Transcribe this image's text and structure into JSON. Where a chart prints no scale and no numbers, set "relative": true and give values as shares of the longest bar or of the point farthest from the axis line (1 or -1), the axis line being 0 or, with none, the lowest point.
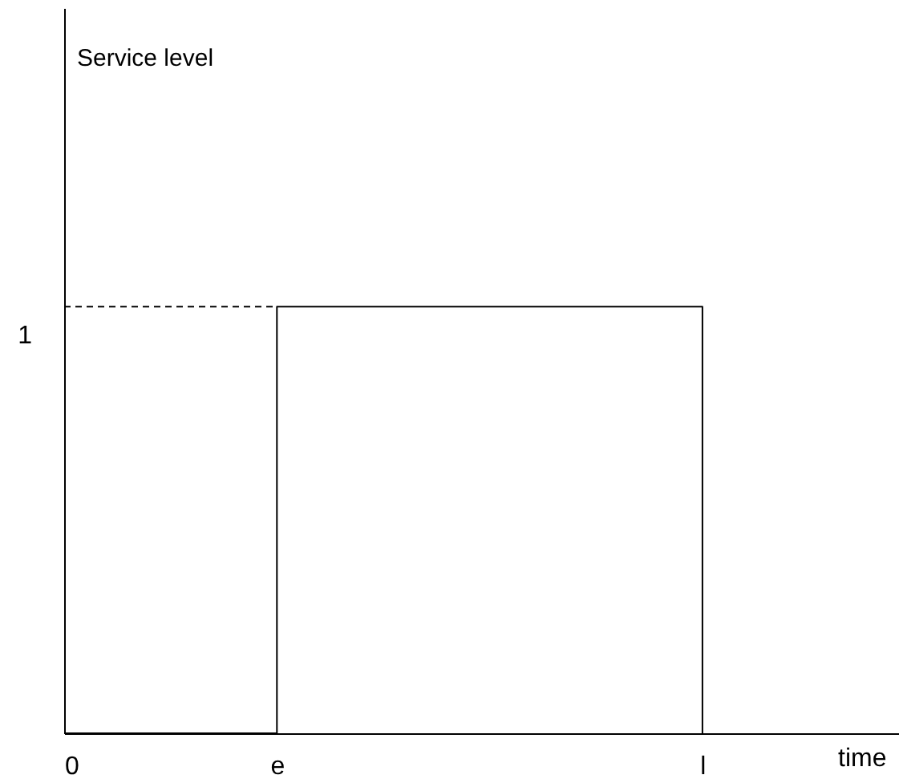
{
  "chart_data": {
    "type": "step",
    "xlabel": "time",
    "annotations": [
      "Service level"
    ],
    "relative": true,
    "categories": [
      "0",
      "e",
      null,
      "l"
    ],
    "marker": "none",
    "line_style": "solid",
    "series": [
      {
        "color": "#000000",
        "values": [
          0,
          1,
          1,
          0
        ]
      }
    ],
    "ref_lines": [
      {
        "axis": "y",
        "value": 1,
        "label": "1",
        "line_style": "dashed",
        "color": "#000000"
      }
    ]
  }
}
